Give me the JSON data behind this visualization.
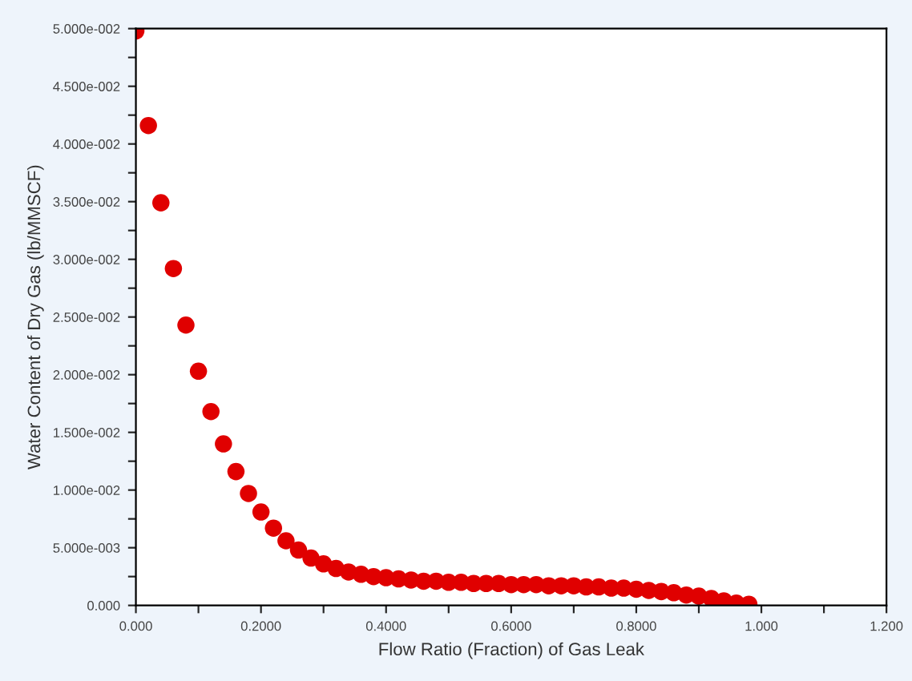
{
  "chart_data": {
    "type": "scatter",
    "xlabel": "Flow Ratio (Fraction) of Gas Leak",
    "ylabel": "Water Content of Dry Gas (lb/MMSCF)",
    "x": [
      0,
      0.02,
      0.04,
      0.06,
      0.08,
      0.1,
      0.12,
      0.14,
      0.16,
      0.18,
      0.2,
      0.22,
      0.24,
      0.26,
      0.28,
      0.3,
      0.32,
      0.34,
      0.36,
      0.38,
      0.4,
      0.42,
      0.44,
      0.46,
      0.48,
      0.5,
      0.52,
      0.54,
      0.56,
      0.58,
      0.6,
      0.62,
      0.64,
      0.66,
      0.68,
      0.7,
      0.72,
      0.74,
      0.76,
      0.78,
      0.8,
      0.82,
      0.84,
      0.86,
      0.88,
      0.9,
      0.92,
      0.94,
      0.96,
      0.98
    ],
    "series": [
      {
        "color": "#e00000",
        "values": [
          0.0498,
          0.0416,
          0.0349,
          0.0292,
          0.0243,
          0.0203,
          0.0168,
          0.014,
          0.0116,
          0.0097,
          0.0081,
          0.0067,
          0.0056,
          0.0048,
          0.0041,
          0.0036,
          0.0032,
          0.0029,
          0.0027,
          0.0025,
          0.0024,
          0.0023,
          0.0022,
          0.0021,
          0.0021,
          0.002,
          0.002,
          0.0019,
          0.0019,
          0.0019,
          0.0018,
          0.0018,
          0.0018,
          0.0017,
          0.0017,
          0.0017,
          0.0016,
          0.0016,
          0.0015,
          0.0015,
          0.0014,
          0.0013,
          0.0012,
          0.0011,
          0.0009,
          0.0008,
          0.0006,
          0.0004,
          0.0002,
          0.0001
        ]
      }
    ],
    "xlim": [
      0,
      1.2
    ],
    "ylim": [
      0,
      0.05
    ],
    "xticks": [
      {
        "value": 0,
        "label": "0.000"
      },
      {
        "value": 0.1,
        "label": null
      },
      {
        "value": 0.2,
        "label": "0.2000"
      },
      {
        "value": 0.3,
        "label": null
      },
      {
        "value": 0.4,
        "label": "0.4000"
      },
      {
        "value": 0.5,
        "label": null
      },
      {
        "value": 0.6,
        "label": "0.6000"
      },
      {
        "value": 0.7,
        "label": null
      },
      {
        "value": 0.8,
        "label": "0.8000"
      },
      {
        "value": 0.9,
        "label": null
      },
      {
        "value": 1.0,
        "label": "1.000"
      },
      {
        "value": 1.1,
        "label": null
      },
      {
        "value": 1.2,
        "label": "1.200"
      }
    ],
    "yticks": [
      {
        "value": 0,
        "label": "0.000"
      },
      {
        "value": 0.0025,
        "label": null
      },
      {
        "value": 0.005,
        "label": "5.000e-003"
      },
      {
        "value": 0.0075,
        "label": null
      },
      {
        "value": 0.01,
        "label": "1.000e-002"
      },
      {
        "value": 0.0125,
        "label": null
      },
      {
        "value": 0.015,
        "label": "1.500e-002"
      },
      {
        "value": 0.0175,
        "label": null
      },
      {
        "value": 0.02,
        "label": "2.000e-002"
      },
      {
        "value": 0.0225,
        "label": null
      },
      {
        "value": 0.025,
        "label": "2.500e-002"
      },
      {
        "value": 0.0275,
        "label": null
      },
      {
        "value": 0.03,
        "label": "3.000e-002"
      },
      {
        "value": 0.0325,
        "label": null
      },
      {
        "value": 0.035,
        "label": "3.500e-002"
      },
      {
        "value": 0.0375,
        "label": null
      },
      {
        "value": 0.04,
        "label": "4.000e-002"
      },
      {
        "value": 0.0425,
        "label": null
      },
      {
        "value": 0.045,
        "label": "4.500e-002"
      },
      {
        "value": 0.0475,
        "label": null
      },
      {
        "value": 0.05,
        "label": "5.000e-002"
      }
    ],
    "marker": "circle",
    "grid": false,
    "legend": false
  }
}
